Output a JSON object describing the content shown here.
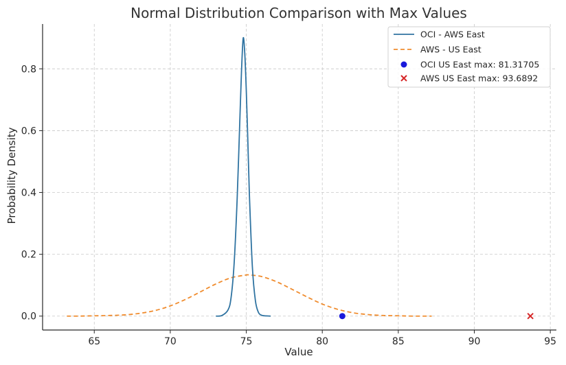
{
  "chart_data": {
    "type": "line",
    "title": "Normal Distribution Comparison with Max Values",
    "xlabel": "Value",
    "ylabel": "Probability Density",
    "xlim": [
      61.6,
      95.4
    ],
    "ylim": [
      -0.045,
      0.945
    ],
    "xticks": [
      65,
      70,
      75,
      80,
      85,
      90,
      95
    ],
    "yticks": [
      0.0,
      0.2,
      0.4,
      0.6,
      0.8
    ],
    "grid": true,
    "legend_position": "top-right",
    "series": [
      {
        "name": "OCI - AWS East",
        "style": "solid",
        "color": "#2f73a1",
        "x": [
          73.0,
          73.4,
          73.8,
          74.0,
          74.2,
          74.4,
          74.6,
          74.7,
          74.8,
          74.9,
          75.0,
          75.1,
          75.2,
          75.4,
          75.6,
          75.8,
          76.0,
          76.2,
          76.6
        ],
        "y": [
          0.0,
          0.002,
          0.02,
          0.06,
          0.17,
          0.38,
          0.67,
          0.81,
          0.9,
          0.85,
          0.73,
          0.57,
          0.4,
          0.16,
          0.05,
          0.012,
          0.003,
          0.001,
          0.0
        ]
      },
      {
        "name": "AWS - US East",
        "style": "dashed",
        "color": "#f08c2e",
        "x": [
          63.2,
          64,
          65,
          66,
          67,
          68,
          69,
          70,
          71,
          72,
          73,
          74,
          75,
          75.2,
          76,
          77,
          78,
          79,
          80,
          81,
          82,
          83,
          84,
          85,
          86,
          87.2
        ],
        "y": [
          0.0,
          0.0,
          0.001,
          0.002,
          0.004,
          0.009,
          0.018,
          0.033,
          0.054,
          0.079,
          0.104,
          0.124,
          0.133,
          0.133,
          0.128,
          0.111,
          0.087,
          0.062,
          0.039,
          0.022,
          0.011,
          0.005,
          0.002,
          0.001,
          0.0,
          0.0
        ]
      }
    ],
    "points": [
      {
        "name": "OCI US East max: 81.31705",
        "x": 81.31705,
        "y": 0.0,
        "marker": "circle",
        "color": "#1a1adb"
      },
      {
        "name": "AWS US East max: 93.6892",
        "x": 93.6892,
        "y": 0.0,
        "marker": "x",
        "color": "#d62728"
      }
    ]
  }
}
